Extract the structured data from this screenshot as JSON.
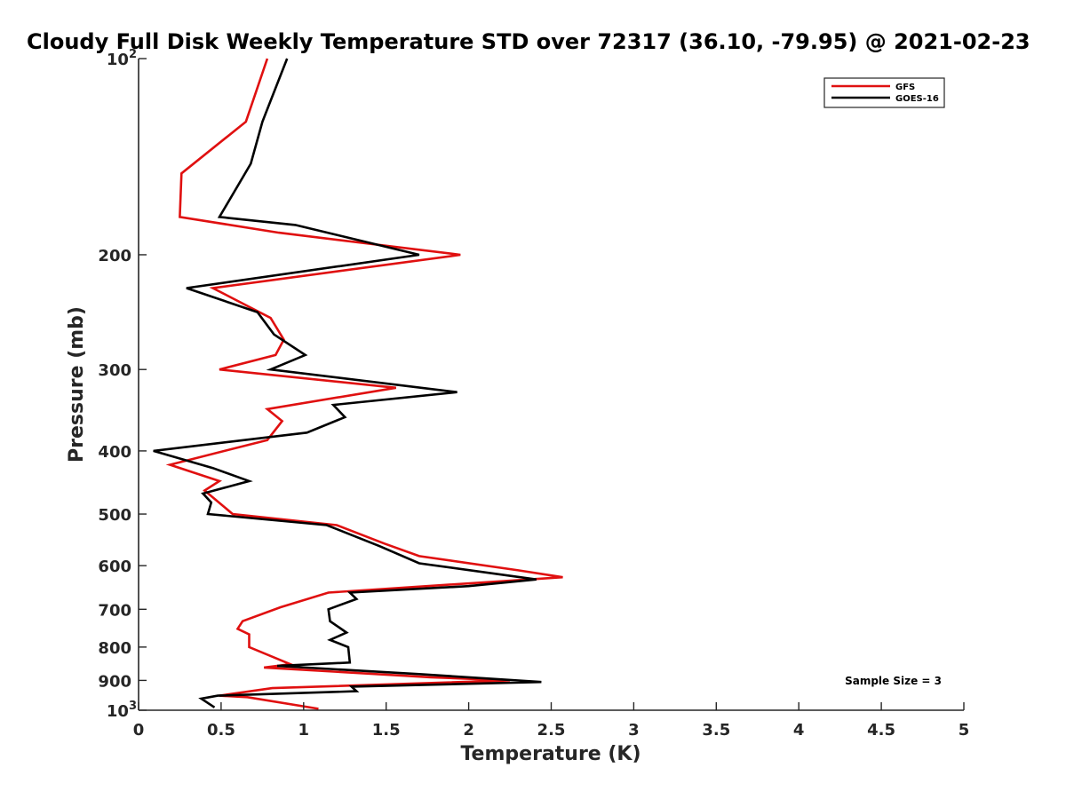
{
  "chart_data": {
    "type": "line",
    "title": "Cloudy Full Disk Weekly Temperature STD over 72317 (36.10, -79.95) @ 2021-02-23",
    "xlabel": "Temperature (K)",
    "ylabel": "Pressure (mb)",
    "xlim": [
      0,
      5
    ],
    "ylim": [
      100,
      1000
    ],
    "y_scale": "log",
    "y_reversed": true,
    "grid": false,
    "legend_position": "top-right",
    "x_ticks": [
      0,
      0.5,
      1,
      1.5,
      2,
      2.5,
      3,
      3.5,
      4,
      4.5,
      5
    ],
    "x_tick_labels": [
      "0",
      "0.5",
      "1",
      "1.5",
      "2",
      "2.5",
      "3",
      "3.5",
      "4",
      "4.5",
      "5"
    ],
    "y_ticks": [
      100,
      200,
      300,
      400,
      500,
      600,
      700,
      800,
      900,
      1000
    ],
    "y_tick_labels": [
      {
        "base": "10",
        "exp": "2"
      },
      {
        "base": "200",
        "exp": ""
      },
      {
        "base": "300",
        "exp": ""
      },
      {
        "base": "400",
        "exp": ""
      },
      {
        "base": "500",
        "exp": ""
      },
      {
        "base": "600",
        "exp": ""
      },
      {
        "base": "700",
        "exp": ""
      },
      {
        "base": "800",
        "exp": ""
      },
      {
        "base": "900",
        "exp": ""
      },
      {
        "base": "10",
        "exp": "3"
      }
    ],
    "annotation": "Sample Size = 3",
    "series": [
      {
        "name": "GFS",
        "color": "#e01010",
        "points": [
          [
            0.78,
            100
          ],
          [
            0.65,
            125
          ],
          [
            0.26,
            150
          ],
          [
            0.25,
            175
          ],
          [
            0.85,
            185
          ],
          [
            1.95,
            200
          ],
          [
            0.45,
            225
          ],
          [
            0.8,
            250
          ],
          [
            0.88,
            270
          ],
          [
            0.83,
            285
          ],
          [
            0.49,
            300
          ],
          [
            1.56,
            320
          ],
          [
            0.78,
            345
          ],
          [
            0.87,
            360
          ],
          [
            0.78,
            385
          ],
          [
            0.19,
            420
          ],
          [
            0.49,
            445
          ],
          [
            0.4,
            460
          ],
          [
            0.57,
            500
          ],
          [
            1.2,
            520
          ],
          [
            1.49,
            555
          ],
          [
            1.7,
            580
          ],
          [
            2.3,
            610
          ],
          [
            2.57,
            625
          ],
          [
            1.15,
            660
          ],
          [
            0.86,
            695
          ],
          [
            0.63,
            730
          ],
          [
            0.6,
            750
          ],
          [
            0.67,
            765
          ],
          [
            0.67,
            800
          ],
          [
            0.92,
            850
          ],
          [
            0.76,
            860
          ],
          [
            1.77,
            890
          ],
          [
            2.25,
            900
          ],
          [
            0.81,
            925
          ],
          [
            0.49,
            950
          ],
          [
            0.66,
            955
          ],
          [
            1.09,
            995
          ]
        ]
      },
      {
        "name": "GOES-16",
        "color": "#000000",
        "points": [
          [
            0.9,
            100
          ],
          [
            0.75,
            125
          ],
          [
            0.68,
            145
          ],
          [
            0.49,
            175
          ],
          [
            0.95,
            180
          ],
          [
            1.7,
            200
          ],
          [
            0.29,
            225
          ],
          [
            0.72,
            245
          ],
          [
            0.82,
            265
          ],
          [
            1.01,
            285
          ],
          [
            0.8,
            300
          ],
          [
            1.93,
            325
          ],
          [
            1.18,
            340
          ],
          [
            1.25,
            355
          ],
          [
            1.02,
            375
          ],
          [
            0.09,
            400
          ],
          [
            0.45,
            425
          ],
          [
            0.67,
            445
          ],
          [
            0.39,
            465
          ],
          [
            0.44,
            480
          ],
          [
            0.42,
            500
          ],
          [
            1.14,
            520
          ],
          [
            1.46,
            560
          ],
          [
            1.7,
            595
          ],
          [
            2.41,
            630
          ],
          [
            2.0,
            645
          ],
          [
            1.28,
            660
          ],
          [
            1.32,
            675
          ],
          [
            1.15,
            700
          ],
          [
            1.16,
            730
          ],
          [
            1.26,
            760
          ],
          [
            1.16,
            780
          ],
          [
            1.27,
            800
          ],
          [
            1.28,
            845
          ],
          [
            0.84,
            855
          ],
          [
            1.7,
            880
          ],
          [
            2.44,
            905
          ],
          [
            1.29,
            920
          ],
          [
            1.32,
            935
          ],
          [
            0.48,
            950
          ],
          [
            0.38,
            960
          ],
          [
            0.46,
            990
          ]
        ]
      }
    ]
  }
}
